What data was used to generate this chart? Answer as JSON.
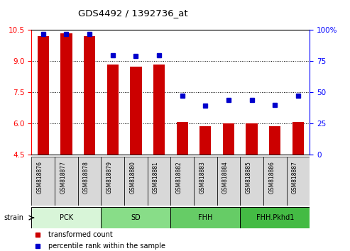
{
  "title": "GDS4492 / 1392736_at",
  "samples": [
    "GSM818876",
    "GSM818877",
    "GSM818878",
    "GSM818879",
    "GSM818880",
    "GSM818881",
    "GSM818882",
    "GSM818883",
    "GSM818884",
    "GSM818885",
    "GSM818886",
    "GSM818887"
  ],
  "bar_values": [
    10.2,
    10.35,
    10.2,
    8.85,
    8.75,
    8.85,
    6.05,
    5.85,
    6.0,
    6.0,
    5.85,
    6.05
  ],
  "dot_values_pct": [
    97,
    97,
    97,
    80,
    79,
    80,
    47,
    39,
    44,
    44,
    40,
    47
  ],
  "bar_color": "#cc0000",
  "dot_color": "#0000cc",
  "ylim_left": [
    4.5,
    10.5
  ],
  "ylim_right": [
    0,
    100
  ],
  "yticks_left": [
    4.5,
    6.0,
    7.5,
    9.0,
    10.5
  ],
  "yticks_right": [
    0,
    25,
    50,
    75,
    100
  ],
  "ytick_right_labels": [
    "0",
    "25",
    "50",
    "75",
    "100%"
  ],
  "grid_yticks": [
    6.0,
    7.5,
    9.0
  ],
  "groups": [
    {
      "label": "PCK",
      "start": 0,
      "end": 3,
      "color": "#d8f5d8"
    },
    {
      "label": "SD",
      "start": 3,
      "end": 6,
      "color": "#88dd88"
    },
    {
      "label": "FHH",
      "start": 6,
      "end": 9,
      "color": "#66cc66"
    },
    {
      "label": "FHH.Pkhd1",
      "start": 9,
      "end": 12,
      "color": "#44bb44"
    }
  ],
  "strain_label": "strain",
  "legend_bar_label": "transformed count",
  "legend_dot_label": "percentile rank within the sample",
  "bar_width": 0.5,
  "bar_bottom": 4.5,
  "sample_box_color": "#d8d8d8",
  "bg_color": "#ffffff"
}
